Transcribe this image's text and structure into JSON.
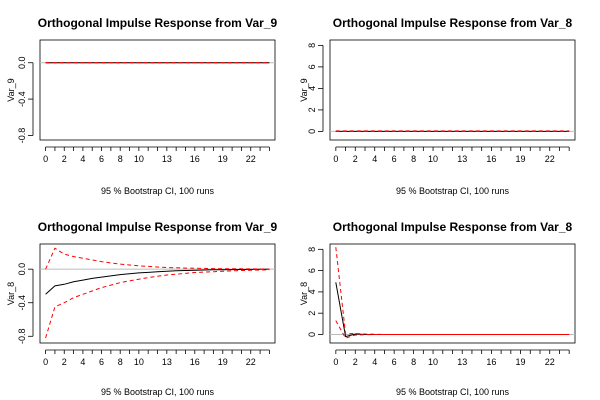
{
  "chart_data": [
    {
      "type": "line",
      "title": "Orthogonal Impulse Response from Var_9",
      "ylabel": "Var_9",
      "xlabel": "95 % Bootstrap CI,  100 runs",
      "x": [
        0,
        1,
        2,
        3,
        4,
        5,
        6,
        7,
        8,
        9,
        10,
        11,
        12,
        13,
        14,
        15,
        16,
        17,
        18,
        19,
        20,
        21,
        22,
        23,
        24
      ],
      "xticks": [
        0,
        2,
        4,
        6,
        8,
        10,
        13,
        16,
        19,
        22
      ],
      "xlim": [
        -0.6,
        24.6
      ],
      "ylim": [
        -0.85,
        0.25
      ],
      "yticks": [
        0.0,
        -0.4,
        -0.8
      ],
      "ytick_labels": [
        "0.0",
        "-0.4",
        "-0.8"
      ],
      "zero_line": true,
      "series": [
        {
          "role": "irf",
          "color": "#000000",
          "dashed": false,
          "values": [
            0,
            0,
            0,
            0,
            0,
            0,
            0,
            0,
            0,
            0,
            0,
            0,
            0,
            0,
            0,
            0,
            0,
            0,
            0,
            0,
            0,
            0,
            0,
            0,
            0
          ]
        },
        {
          "role": "upper",
          "color": "#ff0000",
          "dashed": true,
          "values": [
            0,
            0,
            0,
            0,
            0,
            0,
            0,
            0,
            0,
            0,
            0,
            0,
            0,
            0,
            0,
            0,
            0,
            0,
            0,
            0,
            0,
            0,
            0,
            0,
            0
          ]
        },
        {
          "role": "lower",
          "color": "#ff0000",
          "dashed": true,
          "values": [
            0,
            0,
            0,
            0,
            0,
            0,
            0,
            0,
            0,
            0,
            0,
            0,
            0,
            0,
            0,
            0,
            0,
            0,
            0,
            0,
            0,
            0,
            0,
            0,
            0
          ]
        }
      ]
    },
    {
      "type": "line",
      "title": "Orthogonal Impulse Response from Var_8",
      "ylabel": "Var_9",
      "xlabel": "95 % Bootstrap CI,  100 runs",
      "x": [
        0,
        1,
        2,
        3,
        4,
        5,
        6,
        7,
        8,
        9,
        10,
        11,
        12,
        13,
        14,
        15,
        16,
        17,
        18,
        19,
        20,
        21,
        22,
        23,
        24
      ],
      "xticks": [
        0,
        2,
        4,
        6,
        8,
        10,
        13,
        16,
        19,
        22
      ],
      "xlim": [
        -0.6,
        24.6
      ],
      "ylim": [
        -0.8,
        8.5
      ],
      "yticks": [
        0,
        2,
        4,
        6,
        8
      ],
      "ytick_labels": [
        "0",
        "2",
        "4",
        "6",
        "8"
      ],
      "zero_line": true,
      "series": [
        {
          "role": "irf",
          "color": "#000000",
          "dashed": false,
          "values": [
            0,
            0,
            0,
            0,
            0,
            0,
            0,
            0,
            0,
            0,
            0,
            0,
            0,
            0,
            0,
            0,
            0,
            0,
            0,
            0,
            0,
            0,
            0,
            0,
            0
          ]
        },
        {
          "role": "upper",
          "color": "#ff0000",
          "dashed": true,
          "values": [
            0.05,
            0.05,
            0.05,
            0.05,
            0.05,
            0.05,
            0.05,
            0.05,
            0.05,
            0.05,
            0.05,
            0.05,
            0.05,
            0.05,
            0.05,
            0.05,
            0.05,
            0.05,
            0.05,
            0.05,
            0.05,
            0.05,
            0.05,
            0.05,
            0.05
          ]
        },
        {
          "role": "lower",
          "color": "#ff0000",
          "dashed": true,
          "values": [
            0,
            0,
            0,
            0,
            0,
            0,
            0,
            0,
            0,
            0,
            0,
            0,
            0,
            0,
            0,
            0,
            0,
            0,
            0,
            0,
            0,
            0,
            0,
            0,
            0
          ]
        }
      ]
    },
    {
      "type": "line",
      "title": "Orthogonal Impulse Response from Var_9",
      "ylabel": "Var_8",
      "xlabel": "95 % Bootstrap CI,  100 runs",
      "x": [
        0,
        1,
        2,
        3,
        4,
        5,
        6,
        7,
        8,
        9,
        10,
        11,
        12,
        13,
        14,
        15,
        16,
        17,
        18,
        19,
        20,
        21,
        22,
        23,
        24
      ],
      "xticks": [
        0,
        2,
        4,
        6,
        8,
        10,
        13,
        16,
        19,
        22
      ],
      "xlim": [
        -0.6,
        24.6
      ],
      "ylim": [
        -0.88,
        0.3
      ],
      "yticks": [
        0.0,
        -0.4,
        -0.8
      ],
      "ytick_labels": [
        "0.0",
        "-0.4",
        "-0.8"
      ],
      "zero_line": true,
      "series": [
        {
          "role": "irf",
          "color": "#000000",
          "dashed": false,
          "values": [
            -0.3,
            -0.2,
            -0.18,
            -0.15,
            -0.13,
            -0.11,
            -0.095,
            -0.08,
            -0.065,
            -0.055,
            -0.045,
            -0.038,
            -0.03,
            -0.025,
            -0.02,
            -0.016,
            -0.013,
            -0.01,
            -0.008,
            -0.006,
            -0.005,
            -0.004,
            -0.003,
            -0.002,
            -0.002
          ]
        },
        {
          "role": "upper",
          "color": "#ff0000",
          "dashed": true,
          "values": [
            0.0,
            0.25,
            0.18,
            0.15,
            0.13,
            0.11,
            0.09,
            0.075,
            0.06,
            0.05,
            0.04,
            0.033,
            0.026,
            0.02,
            0.016,
            0.013,
            0.011,
            0.009,
            0.007,
            0.006,
            0.005,
            0.004,
            0.003,
            0.002,
            0.002
          ]
        },
        {
          "role": "lower",
          "color": "#ff0000",
          "dashed": true,
          "values": [
            -0.82,
            -0.45,
            -0.4,
            -0.34,
            -0.3,
            -0.26,
            -0.22,
            -0.19,
            -0.16,
            -0.14,
            -0.12,
            -0.1,
            -0.085,
            -0.07,
            -0.06,
            -0.05,
            -0.04,
            -0.035,
            -0.03,
            -0.025,
            -0.02,
            -0.016,
            -0.013,
            -0.01,
            -0.008
          ]
        }
      ]
    },
    {
      "type": "line",
      "title": "Orthogonal Impulse Response from Var_8",
      "ylabel": "Var_8",
      "xlabel": "95 % Bootstrap CI,  100 runs",
      "x": [
        0,
        1,
        2,
        3,
        4,
        5,
        6,
        7,
        8,
        9,
        10,
        11,
        12,
        13,
        14,
        15,
        16,
        17,
        18,
        19,
        20,
        21,
        22,
        23,
        24
      ],
      "xticks": [
        0,
        2,
        4,
        6,
        8,
        10,
        13,
        16,
        19,
        22
      ],
      "xlim": [
        -0.6,
        24.6
      ],
      "ylim": [
        -0.8,
        8.5
      ],
      "yticks": [
        0,
        2,
        4,
        6,
        8
      ],
      "ytick_labels": [
        "0",
        "2",
        "4",
        "6",
        "8"
      ],
      "zero_line": true,
      "series": [
        {
          "role": "irf",
          "color": "#000000",
          "dashed": false,
          "values": [
            4.9,
            -0.2,
            0.05,
            0,
            0,
            0,
            0,
            0,
            0,
            0,
            0,
            0,
            0,
            0,
            0,
            0,
            0,
            0,
            0,
            0,
            0,
            0,
            0,
            0,
            0
          ]
        },
        {
          "role": "upper",
          "color": "#ff0000",
          "dashed": true,
          "values": [
            8.2,
            0.05,
            0.1,
            0.05,
            0.02,
            0,
            0,
            0,
            0,
            0,
            0,
            0,
            0,
            0,
            0,
            0,
            0,
            0,
            0,
            0,
            0,
            0,
            0,
            0,
            0
          ]
        },
        {
          "role": "lower",
          "color": "#ff0000",
          "dashed": true,
          "values": [
            1.3,
            -0.35,
            -0.05,
            -0.02,
            0,
            0,
            0,
            0,
            0,
            0,
            0,
            0,
            0,
            0,
            0,
            0,
            0,
            0,
            0,
            0,
            0,
            0,
            0,
            0,
            0
          ]
        }
      ]
    }
  ]
}
